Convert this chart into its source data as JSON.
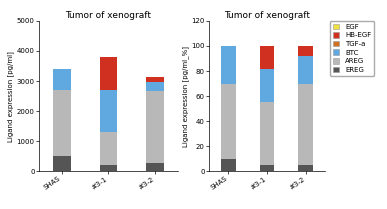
{
  "categories": [
    "SHAS",
    "#3-1",
    "#3-2"
  ],
  "left_title": "Tumor of xenograft",
  "right_title": "Tumor of xenograft",
  "left_ylabel": "Ligand expression [pg/ml]",
  "right_ylabel": "Ligand expression [pg/ml_%]",
  "left_ylim": [
    0,
    5000
  ],
  "right_ylim": [
    0,
    120
  ],
  "left_yticks": [
    0,
    1000,
    2000,
    3000,
    4000,
    5000
  ],
  "right_yticks": [
    0,
    20,
    40,
    60,
    80,
    100,
    120
  ],
  "colors": {
    "EGF": "#f0e040",
    "HB-EGF": "#d03020",
    "TGF-a": "#d07020",
    "BTC": "#60a8e0",
    "AREG": "#b8b8b8",
    "EREG": "#555555"
  },
  "left_data": {
    "EREG": [
      500,
      200,
      280
    ],
    "AREG": [
      2200,
      1100,
      2400
    ],
    "BTC": [
      700,
      1400,
      300
    ],
    "TGF-a": [
      0,
      0,
      0
    ],
    "HB-EGF": [
      0,
      1100,
      150
    ],
    "EGF": [
      0,
      0,
      0
    ]
  },
  "right_data": {
    "EREG": [
      10,
      5,
      5
    ],
    "AREG": [
      60,
      50,
      65
    ],
    "BTC": [
      30,
      27,
      22
    ],
    "TGF-a": [
      0,
      0,
      0
    ],
    "HB-EGF": [
      0,
      18,
      8
    ],
    "EGF": [
      0,
      0,
      0
    ]
  },
  "stack_order": [
    "EREG",
    "AREG",
    "BTC",
    "TGF-a",
    "HB-EGF",
    "EGF"
  ],
  "legend_order": [
    "EGF",
    "HB-EGF",
    "TGF-a",
    "BTC",
    "AREG",
    "EREG"
  ],
  "bar_width": 0.38,
  "title_fontsize": 6.5,
  "tick_fontsize": 5.0,
  "label_fontsize": 5.0,
  "legend_fontsize": 5.0
}
